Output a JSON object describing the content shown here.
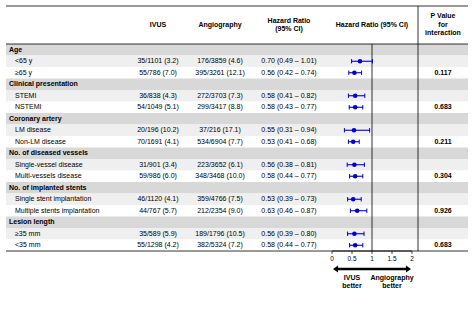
{
  "chart_data": {
    "type": "forest",
    "column_headers": [
      "IVUS",
      "Angiography",
      "Hazard Ratio\n(95% CI)",
      "Hazard Ratio (95% CI)",
      "P Value\nfor\ninteraction"
    ],
    "sections": [
      {
        "header": "Age",
        "rows": [
          {
            "label": "<65 y",
            "ivus": "35/1101 (3.2)",
            "angio": "176/3859 (4.6)",
            "hr_text": "0.70 (0.49 – 1.01)",
            "hr": 0.7,
            "lo": 0.49,
            "hi": 1.01
          },
          {
            "label": "≥65 y",
            "ivus": "55/786 (7.0)",
            "angio": "395/3261 (12.1)",
            "hr_text": "0.56 (0.42 – 0.74)",
            "hr": 0.56,
            "lo": 0.42,
            "hi": 0.74
          }
        ],
        "p_interaction": "0.117"
      },
      {
        "header": "Clinical presentation",
        "rows": [
          {
            "label": "STEMI",
            "ivus": "36/838 (4.3)",
            "angio": "272/3703 (7.3)",
            "hr_text": "0.58 (0.41 – 0.82)",
            "hr": 0.58,
            "lo": 0.41,
            "hi": 0.82
          },
          {
            "label": "NSTEMI",
            "ivus": "54/1049 (5.1)",
            "angio": "299/3417 (8.8)",
            "hr_text": "0.58 (0.43 – 0.77)",
            "hr": 0.58,
            "lo": 0.43,
            "hi": 0.77
          }
        ],
        "p_interaction": "0.683"
      },
      {
        "header": "Coronary artery",
        "rows": [
          {
            "label": "LM disease",
            "ivus": "20/196 (10.2)",
            "angio": "37/216 (17.1)",
            "hr_text": "0.55 (0.31 – 0.94)",
            "hr": 0.55,
            "lo": 0.31,
            "hi": 0.94
          },
          {
            "label": "Non-LM disease",
            "ivus": "70/1691 (4.1)",
            "angio": "534/6904 (7.7)",
            "hr_text": "0.53 (0.41 – 0.68)",
            "hr": 0.53,
            "lo": 0.41,
            "hi": 0.68
          }
        ],
        "p_interaction": "0.211"
      },
      {
        "header": "No. of diseased vessels",
        "rows": [
          {
            "label": "Single-vessel disease",
            "ivus": "31/901 (3.4)",
            "angio": "223/3652 (6.1)",
            "hr_text": "0.56 (0.38 – 0.81)",
            "hr": 0.56,
            "lo": 0.38,
            "hi": 0.81
          },
          {
            "label": "Multi-vessels disease",
            "ivus": "59/986 (6.0)",
            "angio": "348/3468 (10.0)",
            "hr_text": "0.58 (0.44 – 0.77)",
            "hr": 0.58,
            "lo": 0.44,
            "hi": 0.77
          }
        ],
        "p_interaction": "0.304"
      },
      {
        "header": "No. of implanted stents",
        "rows": [
          {
            "label": "Single stent implantation",
            "ivus": "46/1120 (4.1)",
            "angio": "359/4766 (7.5)",
            "hr_text": "0.53 (0.39 – 0.73)",
            "hr": 0.53,
            "lo": 0.39,
            "hi": 0.73
          },
          {
            "label": "Multiple stents implantation",
            "ivus": "44/767 (5.7)",
            "angio": "212/2354 (9.0)",
            "hr_text": "0.63 (0.46 – 0.87)",
            "hr": 0.63,
            "lo": 0.46,
            "hi": 0.87
          }
        ],
        "p_interaction": "0.926"
      },
      {
        "header": "Lesion length",
        "rows": [
          {
            "label": "≥35 mm",
            "ivus": "35/589 (5.9)",
            "angio": "189/1796 (10.5)",
            "hr_text": "0.56 (0.39 – 0.80)",
            "hr": 0.56,
            "lo": 0.39,
            "hi": 0.8
          },
          {
            "label": "<35 mm",
            "ivus": "55/1298 (4.2)",
            "angio": "382/5324 (7.2)",
            "hr_text": "0.58 (0.44 – 0.77)",
            "hr": 0.58,
            "lo": 0.44,
            "hi": 0.77
          }
        ],
        "p_interaction": "0.683"
      }
    ],
    "xlim": [
      0,
      2
    ],
    "xticks": [
      0,
      0.5,
      1,
      1.5,
      2
    ],
    "reference": 1,
    "color": "#0000CD",
    "annotations": [
      "IVUS\nbetter",
      "Angiography\nbetter"
    ]
  }
}
